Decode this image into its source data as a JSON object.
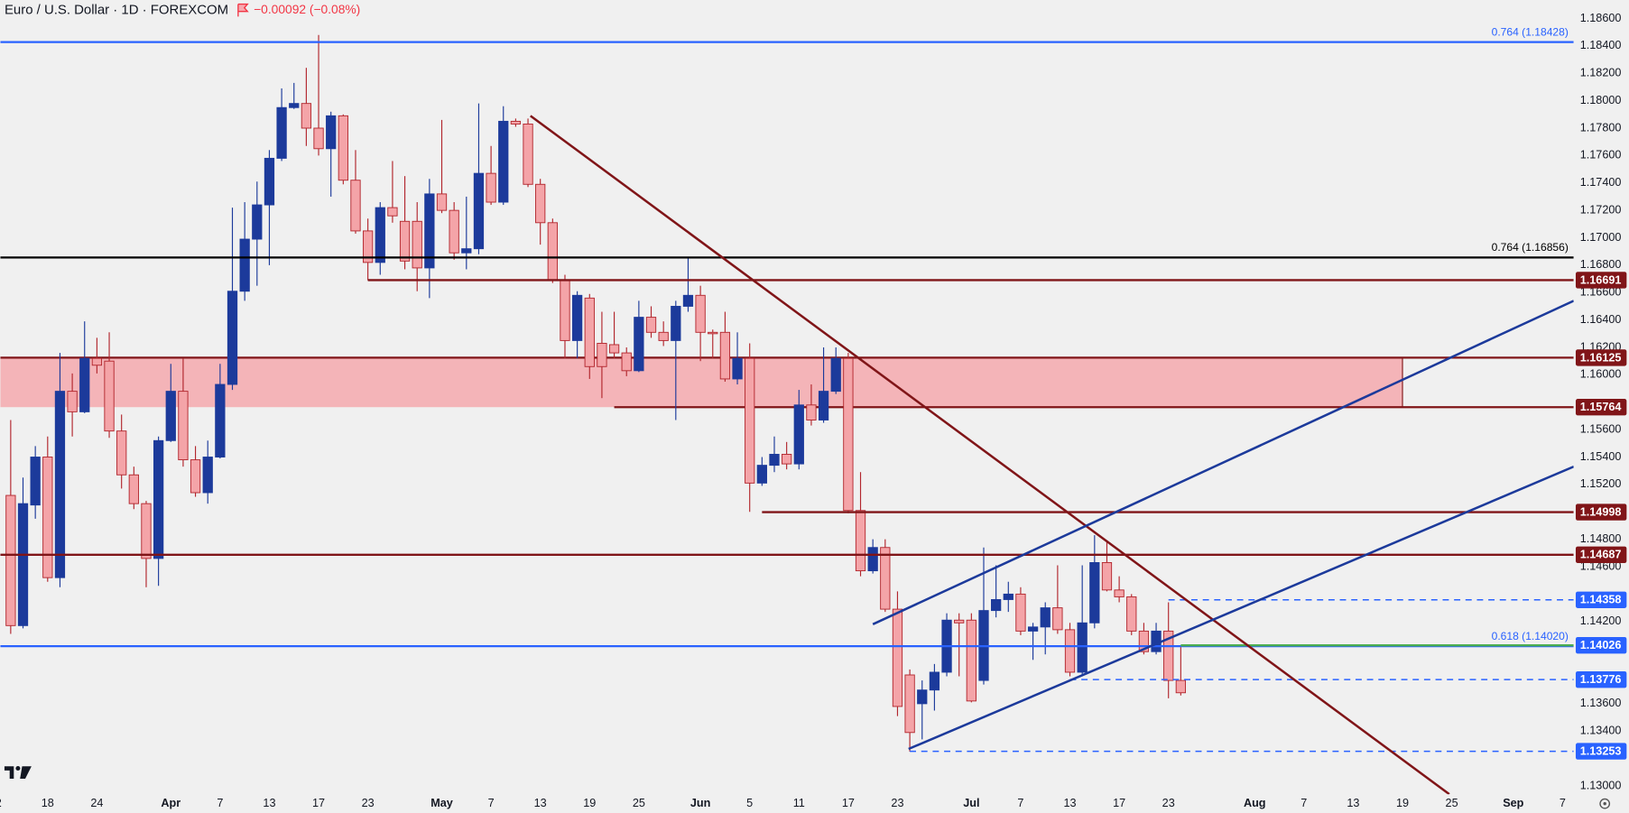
{
  "chart_data": {
    "type": "candlestick",
    "title": "Euro / U.S. Dollar · 1D · FOREXCOM",
    "change": "−0.00092 (−0.08%)",
    "up_color": "#1c3a9b",
    "down_color": "#f4a4a8",
    "down_border": "#b2262d",
    "open": [
      1.1512,
      1.1417,
      1.1505,
      1.154,
      1.1452,
      1.1588,
      1.1573,
      1.1612,
      1.161,
      1.1559,
      1.1527,
      1.1506,
      1.1466,
      1.1552,
      1.1588,
      1.1538,
      1.1514,
      1.154,
      1.1593,
      1.1661,
      1.1699,
      1.1724,
      1.1758,
      1.1795,
      1.1798,
      1.178,
      1.1765,
      1.1789,
      1.1742,
      1.1705,
      1.1682,
      1.1722,
      1.1712,
      1.1712,
      1.1678,
      1.1732,
      1.172,
      1.1689,
      1.1692,
      1.1747,
      1.1726,
      1.1785,
      1.1783,
      1.1739,
      1.1711,
      1.1669,
      1.1625,
      1.1656,
      1.1623,
      1.1622,
      1.1616,
      1.1603,
      1.1642,
      1.1631,
      1.1625,
      1.165,
      1.1658,
      1.1631,
      1.1631,
      1.1597,
      1.1612,
      1.1521,
      1.1534,
      1.1542,
      1.1535,
      1.1578,
      1.1567,
      1.1588,
      1.1612,
      1.1501,
      1.1457,
      1.1474,
      1.1429,
      1.1381,
      1.136,
      1.137,
      1.1383,
      1.1421,
      1.1421,
      1.1377,
      1.1428,
      1.1436,
      1.144,
      1.1413,
      1.1416,
      1.143,
      1.1414,
      1.1383,
      1.1419,
      1.1463,
      1.1443,
      1.1438,
      1.1413,
      1.1398,
      1.1413,
      1.1377
    ],
    "high": [
      1.1567,
      1.1525,
      1.1548,
      1.1555,
      1.1616,
      1.1601,
      1.1639,
      1.1627,
      1.1631,
      1.1571,
      1.1533,
      1.1508,
      1.1555,
      1.1608,
      1.1612,
      1.1548,
      1.1552,
      1.1608,
      1.1722,
      1.1726,
      1.1741,
      1.1764,
      1.1809,
      1.1813,
      1.1824,
      1.1848,
      1.1792,
      1.179,
      1.1764,
      1.1714,
      1.1726,
      1.1756,
      1.1745,
      1.1726,
      1.1743,
      1.1786,
      1.1726,
      1.173,
      1.1798,
      1.1767,
      1.1796,
      1.1787,
      1.1787,
      1.1743,
      1.1714,
      1.1673,
      1.1661,
      1.1659,
      1.1646,
      1.1646,
      1.162,
      1.1654,
      1.165,
      1.1639,
      1.1654,
      1.1686,
      1.1665,
      1.1633,
      1.1646,
      1.1631,
      1.1623,
      1.154,
      1.1555,
      1.1551,
      1.1589,
      1.1593,
      1.162,
      1.162,
      1.1616,
      1.1529,
      1.148,
      1.148,
      1.1442,
      1.1385,
      1.1377,
      1.1389,
      1.1426,
      1.1426,
      1.1426,
      1.1474,
      1.1461,
      1.1449,
      1.1445,
      1.1419,
      1.1434,
      1.1461,
      1.1419,
      1.1461,
      1.1483,
      1.1478,
      1.1453,
      1.144,
      1.1419,
      1.1419,
      1.1434,
      1.1402
    ],
    "low": [
      1.1411,
      1.1415,
      1.1495,
      1.1449,
      1.1445,
      1.1555,
      1.1572,
      1.1601,
      1.1554,
      1.1517,
      1.1502,
      1.1445,
      1.1446,
      1.1551,
      1.1533,
      1.1511,
      1.1506,
      1.1539,
      1.1589,
      1.1654,
      1.1665,
      1.168,
      1.1756,
      1.1794,
      1.1767,
      1.176,
      1.173,
      1.1739,
      1.1703,
      1.1669,
      1.1673,
      1.1711,
      1.1677,
      1.1661,
      1.1656,
      1.1718,
      1.1684,
      1.1677,
      1.1688,
      1.1724,
      1.1724,
      1.1781,
      1.1737,
      1.1695,
      1.1667,
      1.1612,
      1.1612,
      1.1597,
      1.1583,
      1.1612,
      1.1599,
      1.1602,
      1.1627,
      1.1621,
      1.1567,
      1.1646,
      1.161,
      1.1612,
      1.1595,
      1.1593,
      1.15,
      1.1519,
      1.1529,
      1.1531,
      1.1531,
      1.1563,
      1.1565,
      1.1586,
      1.1499,
      1.1453,
      1.1455,
      1.1427,
      1.1351,
      1.1325,
      1.1334,
      1.1355,
      1.138,
      1.138,
      1.1361,
      1.1374,
      1.1423,
      1.1427,
      1.141,
      1.1392,
      1.1396,
      1.1411,
      1.138,
      1.138,
      1.1415,
      1.1442,
      1.1434,
      1.141,
      1.1396,
      1.1396,
      1.1364,
      1.1366
    ],
    "close": [
      1.1417,
      1.1506,
      1.154,
      1.1452,
      1.1588,
      1.1573,
      1.1612,
      1.1607,
      1.1559,
      1.1527,
      1.1506,
      1.1466,
      1.1552,
      1.1588,
      1.1538,
      1.1514,
      1.154,
      1.1593,
      1.1661,
      1.1699,
      1.1724,
      1.1758,
      1.1795,
      1.1798,
      1.178,
      1.1765,
      1.1789,
      1.1742,
      1.1705,
      1.1682,
      1.1722,
      1.1716,
      1.1683,
      1.1678,
      1.1732,
      1.172,
      1.1689,
      1.1692,
      1.1747,
      1.1726,
      1.1785,
      1.1783,
      1.1739,
      1.1711,
      1.1669,
      1.1625,
      1.1658,
      1.1606,
      1.1606,
      1.1616,
      1.1603,
      1.1642,
      1.1631,
      1.1625,
      1.165,
      1.1658,
      1.1631,
      1.163,
      1.1597,
      1.1612,
      1.1521,
      1.1534,
      1.1542,
      1.1535,
      1.1578,
      1.1567,
      1.1588,
      1.1612,
      1.1501,
      1.1457,
      1.1474,
      1.1429,
      1.1358,
      1.1339,
      1.137,
      1.1383,
      1.1421,
      1.1419,
      1.1362,
      1.1428,
      1.1436,
      1.144,
      1.1413,
      1.1416,
      1.143,
      1.1414,
      1.1383,
      1.1419,
      1.1463,
      1.1443,
      1.1438,
      1.1413,
      1.1398,
      1.1413,
      1.1377,
      1.1368
    ],
    "ylim": [
      1.12939,
      1.18735
    ],
    "yticks": [
      {
        "value": 1.186,
        "label": "1.18600"
      },
      {
        "value": 1.184,
        "label": "1.18400"
      },
      {
        "value": 1.182,
        "label": "1.18200"
      },
      {
        "value": 1.18,
        "label": "1.18000"
      },
      {
        "value": 1.178,
        "label": "1.17800"
      },
      {
        "value": 1.176,
        "label": "1.17600"
      },
      {
        "value": 1.174,
        "label": "1.17400"
      },
      {
        "value": 1.172,
        "label": "1.17200"
      },
      {
        "value": 1.17,
        "label": "1.17000"
      },
      {
        "value": 1.168,
        "label": "1.16800"
      },
      {
        "value": 1.166,
        "label": "1.16600"
      },
      {
        "value": 1.164,
        "label": "1.16400"
      },
      {
        "value": 1.162,
        "label": "1.16200"
      },
      {
        "value": 1.16,
        "label": "1.16000"
      },
      {
        "value": 1.156,
        "label": "1.15600"
      },
      {
        "value": 1.154,
        "label": "1.15400"
      },
      {
        "value": 1.152,
        "label": "1.15200"
      },
      {
        "value": 1.148,
        "label": "1.14800"
      },
      {
        "value": 1.146,
        "label": "1.14600"
      },
      {
        "value": 1.142,
        "label": "1.14200"
      },
      {
        "value": 1.136,
        "label": "1.13600"
      },
      {
        "value": 1.134,
        "label": "1.13400"
      },
      {
        "value": 1.13,
        "label": "1.13000"
      }
    ],
    "xticks": [
      {
        "value": -1,
        "label": "2"
      },
      {
        "value": 3,
        "label": "18"
      },
      {
        "value": 7,
        "label": "24"
      },
      {
        "value": 13,
        "label": "Apr"
      },
      {
        "value": 17,
        "label": "7"
      },
      {
        "value": 21,
        "label": "13"
      },
      {
        "value": 25,
        "label": "17"
      },
      {
        "value": 29,
        "label": "23"
      },
      {
        "value": 35,
        "label": "May"
      },
      {
        "value": 39,
        "label": "7"
      },
      {
        "value": 43,
        "label": "13"
      },
      {
        "value": 47,
        "label": "19"
      },
      {
        "value": 51,
        "label": "25"
      },
      {
        "value": 56,
        "label": "Jun"
      },
      {
        "value": 60,
        "label": "5"
      },
      {
        "value": 64,
        "label": "11"
      },
      {
        "value": 68,
        "label": "17"
      },
      {
        "value": 72,
        "label": "23"
      },
      {
        "value": 78,
        "label": "Jul"
      },
      {
        "value": 82,
        "label": "7"
      },
      {
        "value": 86,
        "label": "13"
      },
      {
        "value": 90,
        "label": "17"
      },
      {
        "value": 94,
        "label": "23"
      },
      {
        "value": 101,
        "label": "Aug"
      },
      {
        "value": 105,
        "label": "7"
      },
      {
        "value": 109,
        "label": "13"
      },
      {
        "value": 113,
        "label": "19"
      },
      {
        "value": 117,
        "label": "25"
      },
      {
        "value": 122,
        "label": "Sep"
      },
      {
        "value": 126,
        "label": "7"
      }
    ],
    "zone": {
      "top": 1.16125,
      "bottom": 1.15764,
      "end": 113,
      "bottom_start": 49,
      "color": "#f4b4b8",
      "border": "#801518",
      "badge": "#801518"
    },
    "levels": [
      {
        "value": 1.18428,
        "color": "#2962ff",
        "label": "0.764 (1.18428)"
      },
      {
        "value": 1.16856,
        "color": "#000000",
        "label": "0.764 (1.16856)"
      },
      {
        "value": 1.16691,
        "color": "#801518",
        "start": 29,
        "badge": "#801518"
      },
      {
        "value": 1.14998,
        "color": "#801518",
        "start": 61,
        "badge": "#801518"
      },
      {
        "value": 1.14687,
        "color": "#801518",
        "badge": "#801518"
      },
      {
        "value": 1.14358,
        "color": "#2962ff",
        "start": 94,
        "style": "dashed",
        "badge": "#2962ff"
      },
      {
        "value": 1.1402,
        "color": "#2962ff",
        "label": "0.618 (1.14020)"
      },
      {
        "value": 1.14026,
        "color": "#4caf50",
        "start": 95,
        "badge": "#2962ff"
      },
      {
        "value": 1.13776,
        "color": "#2962ff",
        "start": 86,
        "style": "dashed",
        "badge": "#2962ff"
      },
      {
        "value": 1.13253,
        "color": "#2962ff",
        "start": 73,
        "style": "dashed",
        "badge": "#2962ff"
      }
    ],
    "trendlines": [
      {
        "color": "#801518",
        "points": [
          [
            42.2,
            1.1789
          ],
          [
            116.8,
            1.1294
          ]
        ]
      },
      {
        "color": "#1c3a9b",
        "points": [
          [
            70,
            1.1418
          ],
          [
            126.9,
            1.1654
          ]
        ]
      },
      {
        "color": "#1c3a9b",
        "points": [
          [
            72.9,
            1.1327
          ],
          [
            126.9,
            1.1533
          ]
        ]
      }
    ]
  }
}
